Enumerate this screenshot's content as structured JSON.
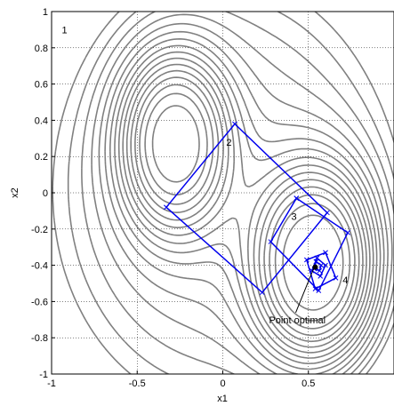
{
  "chart_data": {
    "type": "line",
    "xlabel": "x1",
    "ylabel": "x2",
    "xlim": [
      -1,
      1
    ],
    "ylim": [
      -1,
      1
    ],
    "grid": true,
    "x_ticks": [
      -1,
      -0.5,
      0,
      0.5
    ],
    "x_tick_labels": [
      "-1",
      "-0.5",
      "0",
      "0.5"
    ],
    "y_ticks": [
      -1,
      -0.8,
      -0.6,
      -0.4,
      -0.2,
      0,
      0.2,
      0.4,
      0.6,
      0.8,
      1
    ],
    "y_tick_labels": [
      "-1",
      "-0.8",
      "-0.6",
      "-0.4",
      "-0.2",
      "0",
      "0.2",
      "0.4",
      "0.6",
      "0.8",
      "1"
    ],
    "contour_color": "#808080",
    "simplex_color": "#0000ee",
    "contours": {
      "minima": [
        {
          "x": -0.28,
          "y": 0.28,
          "sx": 0.09,
          "sy": 0.14,
          "depth": 6.0
        },
        {
          "x": 0.54,
          "y": -0.4,
          "sx": 0.1,
          "sy": 0.15,
          "depth": 7.0
        }
      ],
      "background_slope": [
        1.3,
        0.9
      ],
      "levels": 16
    },
    "series": [
      {
        "points": [
          {
            "x": -0.33,
            "y": -0.08
          },
          {
            "x": 0.07,
            "y": 0.38
          },
          {
            "x": 0.61,
            "y": -0.11
          },
          {
            "x": 0.23,
            "y": -0.55
          },
          {
            "x": -0.33,
            "y": -0.08
          }
        ]
      },
      {
        "points": [
          {
            "x": 0.43,
            "y": -0.03
          },
          {
            "x": 0.73,
            "y": -0.22
          },
          {
            "x": 0.56,
            "y": -0.54
          },
          {
            "x": 0.28,
            "y": -0.27
          },
          {
            "x": 0.43,
            "y": -0.03
          }
        ]
      },
      {
        "points": [
          {
            "x": 0.6,
            "y": -0.33
          },
          {
            "x": 0.66,
            "y": -0.47
          },
          {
            "x": 0.54,
            "y": -0.53
          },
          {
            "x": 0.49,
            "y": -0.37
          },
          {
            "x": 0.6,
            "y": -0.33
          }
        ]
      },
      {
        "points": [
          {
            "x": 0.55,
            "y": -0.36
          },
          {
            "x": 0.6,
            "y": -0.4
          },
          {
            "x": 0.57,
            "y": -0.46
          },
          {
            "x": 0.52,
            "y": -0.43
          },
          {
            "x": 0.55,
            "y": -0.36
          }
        ]
      },
      {
        "points": [
          {
            "x": 0.545,
            "y": -0.38
          },
          {
            "x": 0.575,
            "y": -0.4
          },
          {
            "x": 0.565,
            "y": -0.43
          },
          {
            "x": 0.535,
            "y": -0.42
          },
          {
            "x": 0.545,
            "y": -0.38
          }
        ]
      }
    ],
    "iteration_labels": [
      {
        "text": "1",
        "x": -0.94,
        "y": 0.88
      },
      {
        "text": "2",
        "x": 0.02,
        "y": 0.26
      },
      {
        "text": "3",
        "x": 0.4,
        "y": -0.15
      },
      {
        "text": "4",
        "x": 0.7,
        "y": -0.5
      }
    ],
    "optimum": {
      "x": 0.54,
      "y": -0.41,
      "label": "Point optimal",
      "label_x": 0.27,
      "label_y": -0.72
    }
  }
}
